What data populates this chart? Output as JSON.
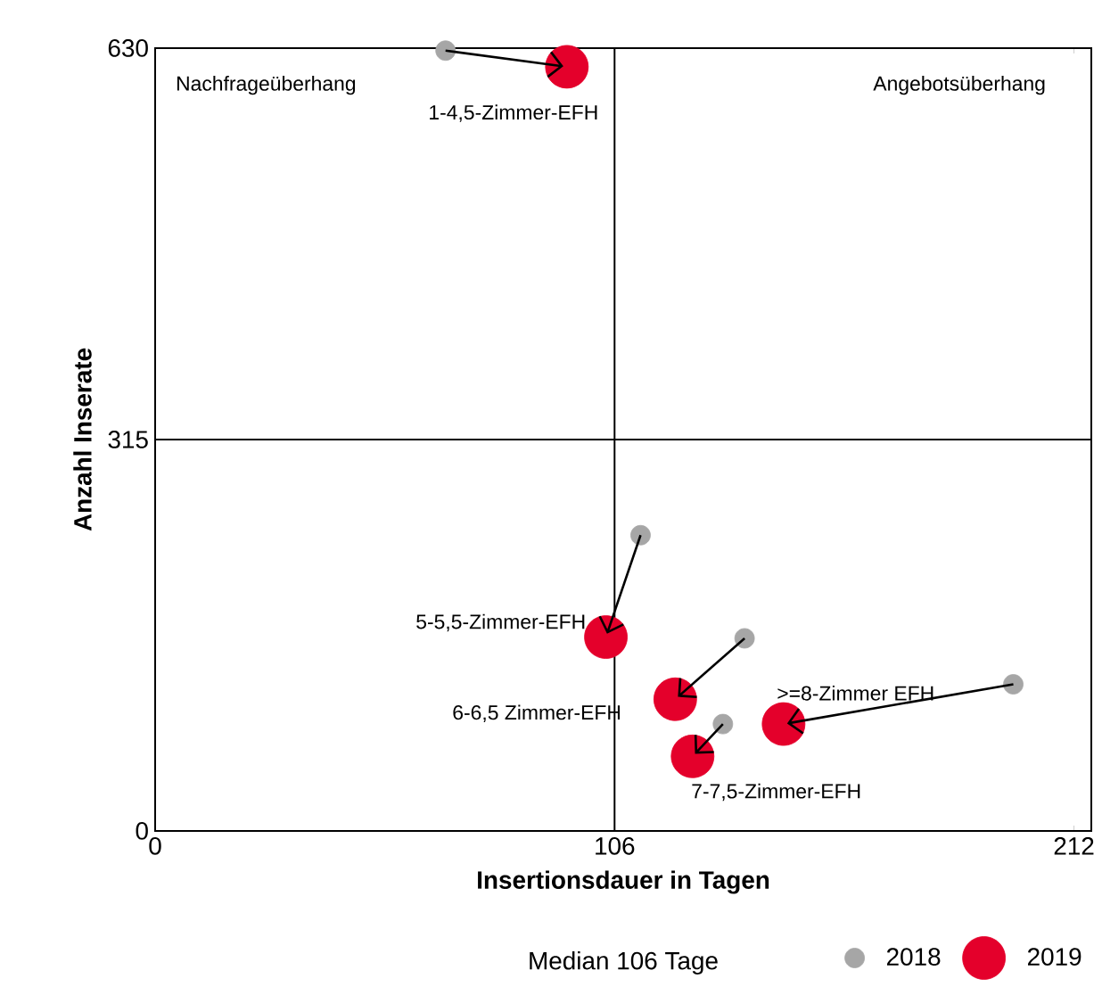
{
  "chart_data": {
    "type": "scatter",
    "xlabel": "Insertionsdauer in Tagen",
    "ylabel": "Anzahl Inserate",
    "xlim": [
      0,
      216
    ],
    "xticks": [
      0,
      106,
      212
    ],
    "ylim": [
      0,
      630
    ],
    "yticks": [
      0,
      315,
      630
    ],
    "marker": "circle",
    "grid": false,
    "legend": "bottom right",
    "series": [
      {
        "name": "2018",
        "color": "#a6a6a6",
        "x": [
          67,
          112,
          136,
          131,
          198
        ],
        "values": [
          628,
          238,
          155,
          86,
          118
        ]
      },
      {
        "name": "2019",
        "color": "#e4002b",
        "x": [
          95,
          104,
          120,
          124,
          145
        ],
        "values": [
          615,
          156,
          106,
          60,
          86
        ]
      }
    ],
    "ref_lines": [
      {
        "axis": "x",
        "value": 106
      },
      {
        "axis": "y",
        "value": 315
      }
    ],
    "annotations": [
      {
        "text": "1-4,5-Zimmer-EFH",
        "x": 95,
        "y": 615
      },
      {
        "text": "5-5,5-Zimmer-EFH",
        "x": 104,
        "y": 156
      },
      {
        "text": "6-6,5 Zimmer-EFH",
        "x": 120,
        "y": 106
      },
      {
        "text": "7-7,5-Zimmer-EFH",
        "x": 124,
        "y": 60
      },
      {
        "text": ">=8-Zimmer EFH",
        "x": 145,
        "y": 86
      },
      "Nachfrageüberhang",
      "Angebotsüberhang",
      "Median 106 Tage"
    ]
  }
}
